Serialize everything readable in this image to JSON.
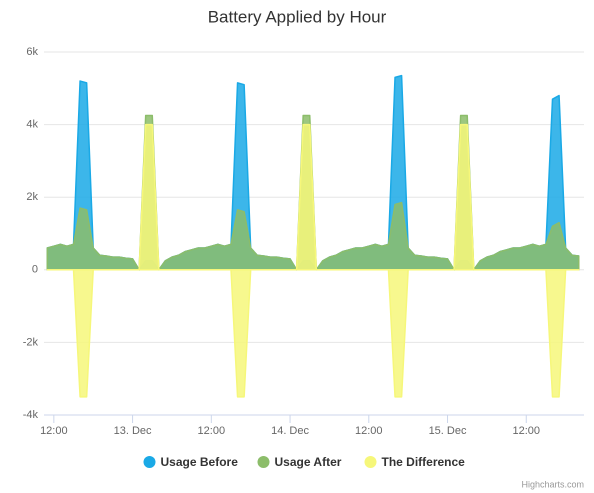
{
  "chart_data": {
    "type": "area",
    "title": "Battery Applied by Hour",
    "x": [
      -13,
      -12,
      -11,
      -10,
      -9,
      -8,
      -7,
      -6,
      -5,
      -4,
      -3,
      -2,
      -1,
      0,
      1,
      2,
      3,
      4,
      5,
      6,
      7,
      8,
      9,
      10,
      11,
      12,
      13,
      14,
      15,
      16,
      17,
      18,
      19,
      20,
      21,
      22,
      23,
      24,
      25,
      26,
      27,
      28,
      29,
      30,
      31,
      32,
      33,
      34,
      35,
      36,
      37,
      38,
      39,
      40,
      41,
      42,
      43,
      44,
      45,
      46,
      47,
      48,
      49,
      50,
      51,
      52,
      53,
      54,
      55,
      56,
      57,
      58,
      59,
      60,
      61,
      62,
      63,
      64,
      65,
      66,
      67,
      68
    ],
    "xlim": [
      -13.5,
      68.8
    ],
    "xticks": [
      {
        "value": -12,
        "label": "12:00"
      },
      {
        "value": 0,
        "label": "13. Dec"
      },
      {
        "value": 12,
        "label": "12:00"
      },
      {
        "value": 24,
        "label": "14. Dec"
      },
      {
        "value": 36,
        "label": "12:00"
      },
      {
        "value": 48,
        "label": "15. Dec"
      },
      {
        "value": 60,
        "label": "12:00"
      }
    ],
    "ylim": [
      -4000,
      6000
    ],
    "yticks": [
      {
        "value": -4000,
        "label": "-4k"
      },
      {
        "value": -2000,
        "label": "-2k"
      },
      0,
      {
        "value": 2000,
        "label": "2k"
      },
      {
        "value": 4000,
        "label": "4k"
      },
      {
        "value": 6000,
        "label": "6k"
      }
    ],
    "grid": true,
    "legend": "bottom",
    "series": [
      {
        "name": "Usage Before",
        "color": "#1aa9e6",
        "values": [
          600,
          650,
          700,
          650,
          700,
          5200,
          5150,
          600,
          400,
          380,
          350,
          350,
          320,
          300,
          0,
          250,
          250,
          0,
          250,
          350,
          400,
          500,
          550,
          600,
          600,
          650,
          700,
          650,
          700,
          5150,
          5100,
          600,
          400,
          380,
          350,
          350,
          320,
          300,
          0,
          250,
          250,
          0,
          250,
          350,
          400,
          500,
          550,
          600,
          600,
          650,
          700,
          650,
          700,
          5300,
          5350,
          600,
          400,
          380,
          350,
          350,
          320,
          300,
          0,
          250,
          250,
          0,
          250,
          350,
          400,
          500,
          550,
          600,
          600,
          650,
          700,
          650,
          700,
          4700,
          4800,
          600,
          400,
          380
        ]
      },
      {
        "name": "Usage After",
        "color": "#8cbd6a",
        "values": [
          600,
          650,
          700,
          650,
          700,
          1700,
          1650,
          600,
          400,
          380,
          350,
          350,
          320,
          300,
          0,
          4250,
          4250,
          0,
          250,
          350,
          400,
          500,
          550,
          600,
          600,
          650,
          700,
          650,
          700,
          1650,
          1600,
          600,
          400,
          380,
          350,
          350,
          320,
          300,
          0,
          4250,
          4250,
          0,
          250,
          350,
          400,
          500,
          550,
          600,
          600,
          650,
          700,
          650,
          700,
          1800,
          1850,
          600,
          400,
          380,
          350,
          350,
          320,
          300,
          0,
          4250,
          4250,
          0,
          250,
          350,
          400,
          500,
          550,
          600,
          600,
          650,
          700,
          650,
          700,
          1200,
          1300,
          600,
          400,
          380
        ]
      },
      {
        "name": "The Difference",
        "color": "#f6f77a",
        "values": [
          0,
          0,
          0,
          0,
          0,
          -3500,
          -3500,
          0,
          0,
          0,
          0,
          0,
          0,
          0,
          0,
          4000,
          4000,
          0,
          0,
          0,
          0,
          0,
          0,
          0,
          0,
          0,
          0,
          0,
          0,
          -3500,
          -3500,
          0,
          0,
          0,
          0,
          0,
          0,
          0,
          0,
          4000,
          4000,
          0,
          0,
          0,
          0,
          0,
          0,
          0,
          0,
          0,
          0,
          0,
          0,
          -3500,
          -3500,
          0,
          0,
          0,
          0,
          0,
          0,
          0,
          0,
          4000,
          4000,
          0,
          0,
          0,
          0,
          0,
          0,
          0,
          0,
          0,
          0,
          0,
          0,
          -3500,
          -3500,
          0,
          0,
          0
        ]
      }
    ],
    "credits": "Highcharts.com"
  }
}
